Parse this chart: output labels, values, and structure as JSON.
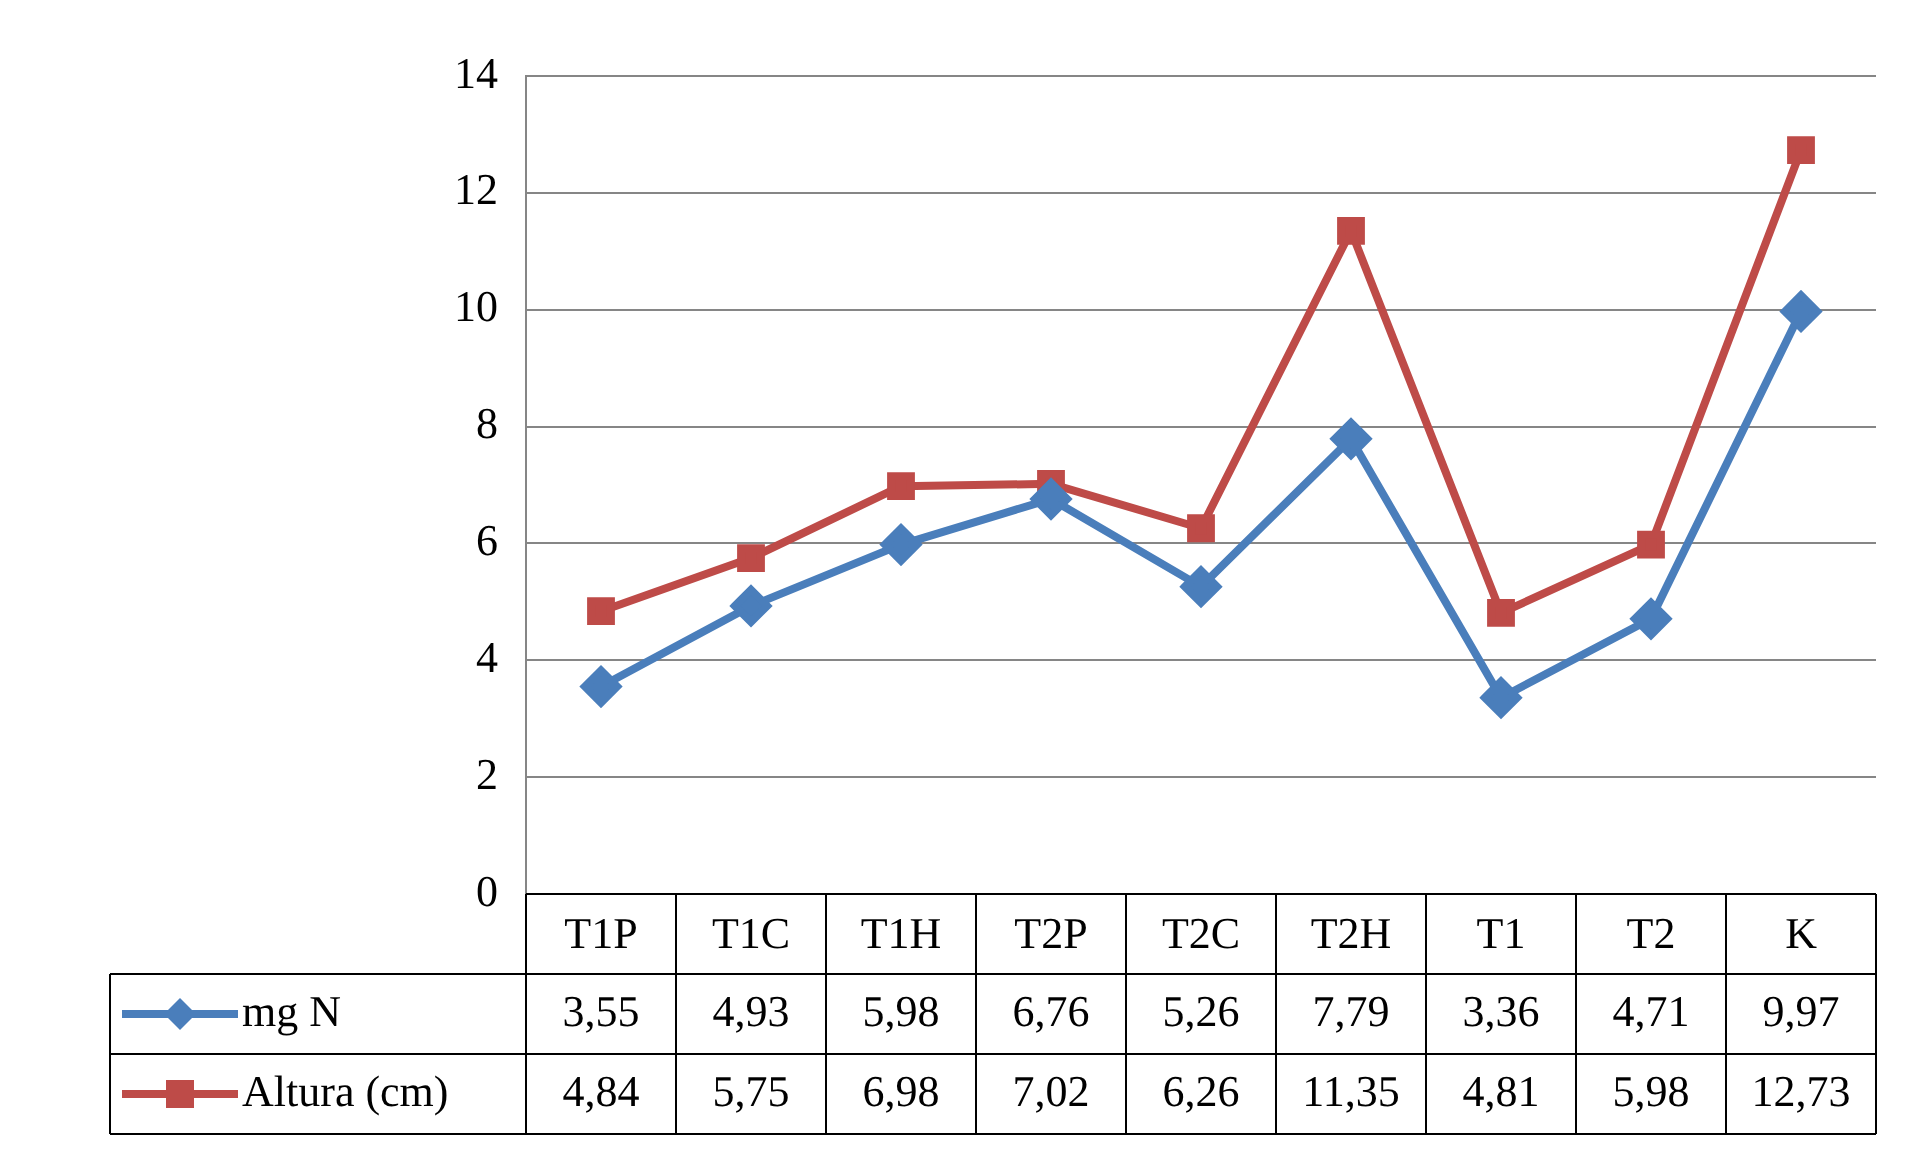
{
  "chart_data": {
    "type": "line",
    "categories": [
      "T1P",
      "T1C",
      "T1H",
      "T2P",
      "T2C",
      "T2H",
      "T1",
      "T2",
      "K"
    ],
    "series": [
      {
        "name": "mg N",
        "color": "#4a7ebb",
        "marker": "diamond",
        "values": [
          3.55,
          4.93,
          5.98,
          6.76,
          5.26,
          7.79,
          3.36,
          4.71,
          9.97
        ],
        "value_labels": [
          "3,55",
          "4,93",
          "5,98",
          "6,76",
          "5,26",
          "7,79",
          "3,36",
          "4,71",
          "9,97"
        ]
      },
      {
        "name": "Altura (cm)",
        "color": "#be4b48",
        "marker": "square",
        "values": [
          4.84,
          5.75,
          6.98,
          7.02,
          6.26,
          11.35,
          4.81,
          5.98,
          12.73
        ],
        "value_labels": [
          "4,84",
          "5,75",
          "6,98",
          "7,02",
          "6,26",
          "11,35",
          "4,81",
          "5,98",
          "12,73"
        ]
      }
    ],
    "ylim": [
      0,
      14
    ],
    "yticks": [
      0,
      2,
      4,
      6,
      8,
      10,
      12,
      14
    ],
    "grid": "y",
    "legend": "bottom left"
  }
}
